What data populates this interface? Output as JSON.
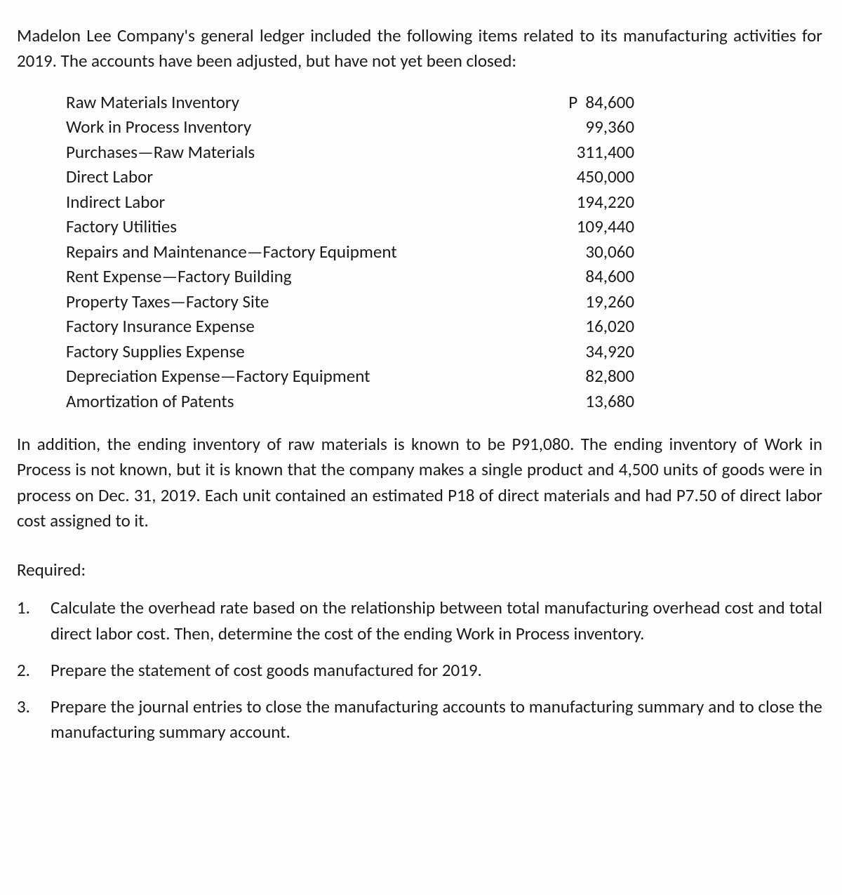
{
  "intro": "Madelon Lee Company's general ledger included the following items related to its manufacturing activities for 2019. The accounts have been adjusted, but have not yet been closed:",
  "currency_symbol": "P",
  "ledger": [
    {
      "label": "Raw Materials Inventory",
      "value": "84,600",
      "show_currency": true
    },
    {
      "label": "Work in Process Inventory",
      "value": "99,360",
      "show_currency": false
    },
    {
      "label": "Purchases—Raw Materials",
      "value": "311,400",
      "show_currency": false
    },
    {
      "label": "Direct Labor",
      "value": "450,000",
      "show_currency": false
    },
    {
      "label": "Indirect Labor",
      "value": "194,220",
      "show_currency": false
    },
    {
      "label": "Factory Utilities",
      "value": "109,440",
      "show_currency": false
    },
    {
      "label": "Repairs and Maintenance—Factory Equipment",
      "value": "30,060",
      "show_currency": false
    },
    {
      "label": "Rent Expense—Factory Building",
      "value": "84,600",
      "show_currency": false
    },
    {
      "label": "Property Taxes—Factory Site",
      "value": "19,260",
      "show_currency": false
    },
    {
      "label": "Factory Insurance Expense",
      "value": "16,020",
      "show_currency": false
    },
    {
      "label": "Factory Supplies Expense",
      "value": "34,920",
      "show_currency": false
    },
    {
      "label": "Depreciation Expense—Factory Equipment",
      "value": "82,800",
      "show_currency": false
    },
    {
      "label": "Amortization of Patents",
      "value": "13,680",
      "show_currency": false
    }
  ],
  "additional": "In addition, the ending inventory of raw materials is known to be P91,080. The ending inventory of Work in Process is not known, but it is known that the company makes a single product and 4,500 units of goods were in process on Dec. 31, 2019. Each unit contained an estimated P18 of direct materials and had P7.50 of direct labor cost assigned to it.",
  "required_heading": "Required:",
  "requirements": [
    {
      "num": "1.",
      "text": "Calculate the overhead rate based on the relationship between total manufacturing overhead cost and total direct labor cost. Then, determine the cost of the ending Work in Process inventory."
    },
    {
      "num": "2.",
      "text": "Prepare the statement of cost goods manufactured for 2019."
    },
    {
      "num": "3.",
      "text": "Prepare the journal entries to close the manufacturing accounts to manufacturing summary and to close the manufacturing summary account."
    }
  ]
}
